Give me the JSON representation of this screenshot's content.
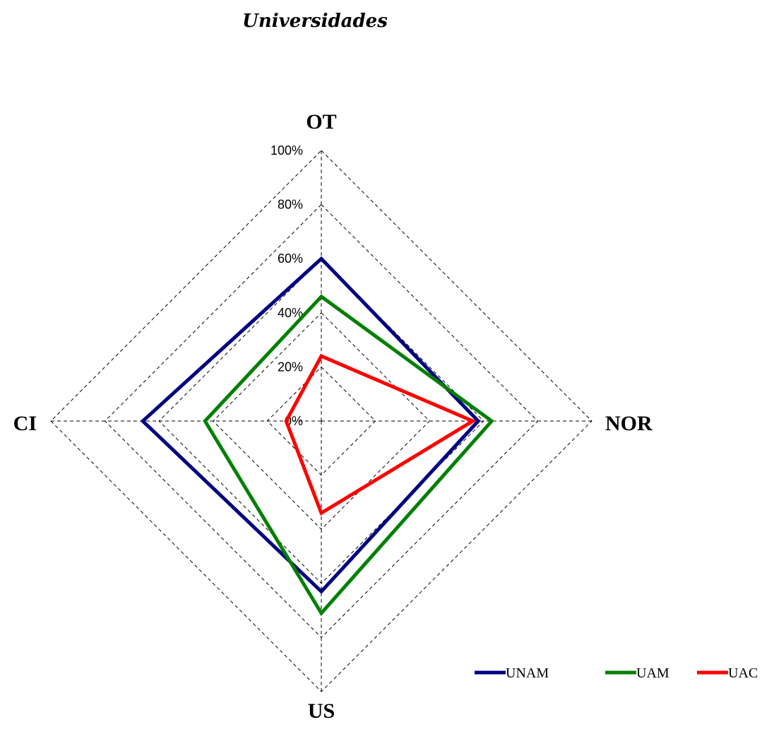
{
  "chart_data": {
    "type": "radar",
    "title": "Universidades",
    "axes": [
      "OT",
      "NOR",
      "US",
      "CI"
    ],
    "tick_labels": [
      "0%",
      "20%",
      "40%",
      "60%",
      "80%",
      "100%"
    ],
    "range": [
      0,
      100
    ],
    "grid": true,
    "legend_position": "bottom-right",
    "series": [
      {
        "name": "UNAM",
        "color": "#000080",
        "values": [
          60,
          58,
          63,
          66
        ]
      },
      {
        "name": "UAM",
        "color": "#008000",
        "values": [
          46,
          63,
          71,
          43
        ]
      },
      {
        "name": "UAC",
        "color": "#ff0000",
        "values": [
          24,
          56,
          34,
          13
        ]
      }
    ]
  }
}
